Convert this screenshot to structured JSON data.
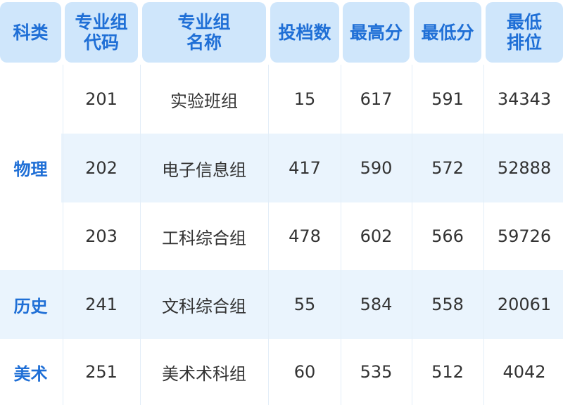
{
  "headers": [
    "科类",
    "专业组\n代码",
    "专业组\n名称",
    "投档数",
    "最高分",
    "最低分",
    "最低\n排位"
  ],
  "categories": [
    {
      "name": "物理",
      "rows": [
        0,
        1,
        2
      ]
    },
    {
      "name": "历史",
      "rows": [
        3
      ]
    },
    {
      "name": "美术",
      "rows": [
        4
      ]
    }
  ],
  "rows": [
    [
      "201",
      "实验班组",
      "15",
      "617",
      "591",
      "34343"
    ],
    [
      "202",
      "电子信息组",
      "417",
      "590",
      "572",
      "52888"
    ],
    [
      "203",
      "工科综合组",
      "478",
      "602",
      "566",
      "59726"
    ],
    [
      "241",
      "文科综合组",
      "55",
      "584",
      "558",
      "20061"
    ],
    [
      "251",
      "美术术科组",
      "60",
      "535",
      "512",
      "4042"
    ]
  ],
  "colors": {
    "header_bg": "#cfe6fb",
    "accent": "#1f6fd6",
    "stripe": "#eaf4fd"
  }
}
